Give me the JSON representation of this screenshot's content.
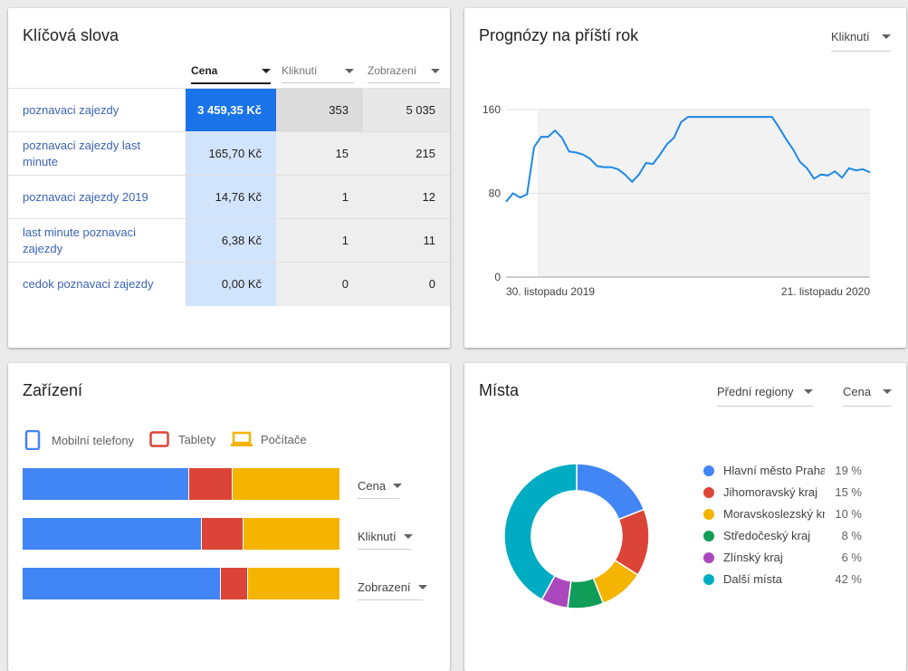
{
  "keywords": {
    "title": "Klíčová slova",
    "columns": [
      {
        "label": "Cena"
      },
      {
        "label": "Kliknutí"
      },
      {
        "label": "Zobrazení"
      }
    ],
    "rows": [
      {
        "name": "poznavaci zajezdy",
        "price": "3 459,35 Kč",
        "clicks": "353",
        "impressions": "5 035"
      },
      {
        "name": "poznavaci zajezdy last minute",
        "price": "165,70 Kč",
        "clicks": "15",
        "impressions": "215"
      },
      {
        "name": "poznavaci zajezdy 2019",
        "price": "14,76 Kč",
        "clicks": "1",
        "impressions": "12"
      },
      {
        "name": "last minute poznavaci zajezdy",
        "price": "6,38 Kč",
        "clicks": "1",
        "impressions": "11"
      },
      {
        "name": "cedok poznavaci zajezdy",
        "price": "0,00 Kč",
        "clicks": "0",
        "impressions": "0"
      }
    ]
  },
  "forecast": {
    "title": "Prognózy na příští rok",
    "metric": "Kliknutí",
    "chart_data": {
      "type": "line",
      "y_ticks": [
        "160",
        "80",
        "0"
      ],
      "ylim": [
        0,
        160
      ],
      "x_start_label": "30. listopadu 2019",
      "x_end_label": "21. listopadu 2020",
      "color": "#1e88e5",
      "values": [
        72,
        80,
        76,
        79,
        124,
        134,
        134,
        140,
        133,
        120,
        119,
        117,
        113,
        106,
        105,
        105,
        103,
        98,
        91,
        98,
        109,
        108,
        117,
        127,
        133,
        148,
        153,
        153,
        153,
        153,
        153,
        153,
        153,
        153,
        153,
        153,
        153,
        153,
        153,
        143,
        132,
        122,
        110,
        104,
        94,
        98,
        97,
        101,
        95,
        104,
        102,
        103,
        100
      ]
    }
  },
  "devices": {
    "title": "Zařízení",
    "legend": [
      {
        "label": "Mobilní telefony",
        "icon": "phone-icon",
        "color": "#4285f4"
      },
      {
        "label": "Tablety",
        "icon": "tablet-icon",
        "color": "#db4437"
      },
      {
        "label": "Počítače",
        "icon": "laptop-icon",
        "color": "#f4b400"
      }
    ],
    "chart_data": {
      "type": "bar",
      "categories": [
        "Cena",
        "Kliknutí",
        "Zobrazení"
      ],
      "series": [
        {
          "name": "Mobilní telefony",
          "values": [
            52.5,
            56.5,
            62.5
          ],
          "color": "#4285f4"
        },
        {
          "name": "Tablety",
          "values": [
            13.5,
            13,
            8.5
          ],
          "color": "#db4437"
        },
        {
          "name": "Počítače",
          "values": [
            34,
            30.5,
            29
          ],
          "color": "#f4b400"
        }
      ],
      "unit": "%"
    }
  },
  "locations": {
    "title": "Místa",
    "filter": "Přední regiony",
    "metric": "Cena",
    "chart_data": {
      "type": "pie",
      "labels": [
        "Hlavní město Praha",
        "Jihomoravský kraj",
        "Moravskoslezský kraj",
        "Středočeský kraj",
        "Zlínský kraj",
        "Další místa"
      ],
      "values": [
        19,
        15,
        10,
        8,
        6,
        42
      ],
      "percent_labels": [
        "19 %",
        "15 %",
        "10 %",
        "8 %",
        "6 %",
        "42 %"
      ],
      "colors": [
        "#4285f4",
        "#db4437",
        "#f4b400",
        "#0f9d58",
        "#ab47bc",
        "#00acc1"
      ]
    }
  }
}
